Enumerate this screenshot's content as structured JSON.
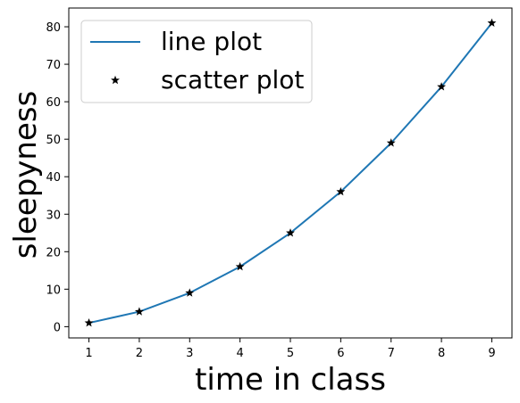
{
  "chart_data": {
    "type": "line",
    "xlabel": "time in class",
    "ylabel": "sleepyness",
    "xlim": [
      0.6,
      9.4
    ],
    "ylim": [
      -3.0,
      85.0
    ],
    "x_ticks": [
      1,
      2,
      3,
      4,
      5,
      6,
      7,
      8,
      9
    ],
    "y_ticks": [
      0,
      10,
      20,
      30,
      40,
      50,
      60,
      70,
      80
    ],
    "grid": false,
    "legend_position": "top-left",
    "series": [
      {
        "name": "line plot",
        "kind": "line",
        "color": "#1f77b4",
        "x": [
          1,
          2,
          3,
          4,
          5,
          6,
          7,
          8,
          9
        ],
        "y": [
          1,
          4,
          9,
          16,
          25,
          36,
          49,
          64,
          81
        ]
      },
      {
        "name": "scatter plot",
        "kind": "scatter",
        "marker": "star",
        "color": "#000000",
        "x": [
          1,
          2,
          3,
          4,
          5,
          6,
          7,
          8,
          9
        ],
        "y": [
          1,
          4,
          9,
          16,
          25,
          36,
          49,
          64,
          81
        ]
      }
    ]
  }
}
